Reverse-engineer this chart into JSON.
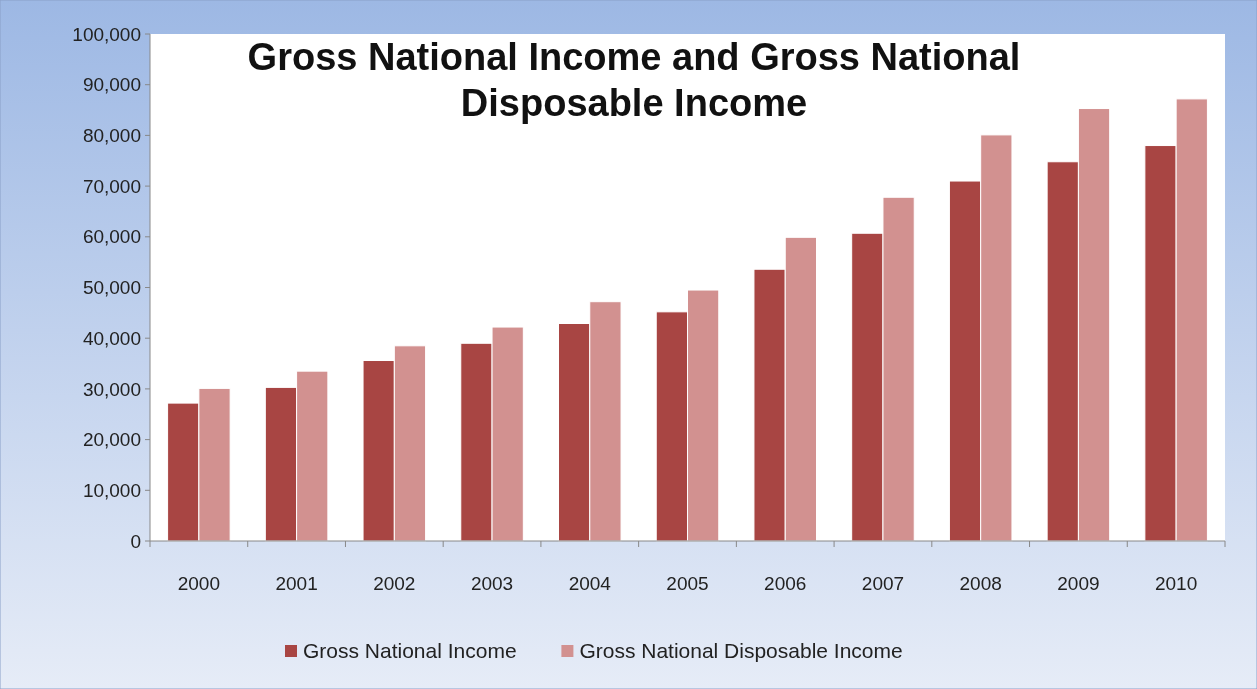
{
  "chart_data": {
    "type": "bar",
    "title": "Gross National Income and Gross National Disposable Income",
    "categories": [
      "2000",
      "2001",
      "2002",
      "2003",
      "2004",
      "2005",
      "2006",
      "2007",
      "2008",
      "2009",
      "2010"
    ],
    "series": [
      {
        "name": "Gross National Income",
        "color": "#a84543",
        "values": [
          27200,
          30300,
          35600,
          39000,
          42900,
          45200,
          53600,
          60700,
          71000,
          74800,
          78000
        ]
      },
      {
        "name": "Gross National Disposable Income",
        "color": "#d29190",
        "values": [
          30100,
          33500,
          38500,
          42200,
          47200,
          49500,
          59900,
          67800,
          80100,
          85300,
          87200
        ]
      }
    ],
    "ylim": [
      0,
      100000
    ],
    "yticks": [
      {
        "value": 0,
        "label": "0"
      },
      {
        "value": 10000,
        "label": "10,000"
      },
      {
        "value": 20000,
        "label": "20,000"
      },
      {
        "value": 30000,
        "label": "30,000"
      },
      {
        "value": 40000,
        "label": "40,000"
      },
      {
        "value": 50000,
        "label": "50,000"
      },
      {
        "value": 60000,
        "label": "60,000"
      },
      {
        "value": 70000,
        "label": "70,000"
      },
      {
        "value": 80000,
        "label": "80,000"
      },
      {
        "value": 90000,
        "label": "90,000"
      },
      {
        "value": 100000,
        "label": "100,000"
      }
    ],
    "grid": false,
    "legend": "bottom"
  }
}
